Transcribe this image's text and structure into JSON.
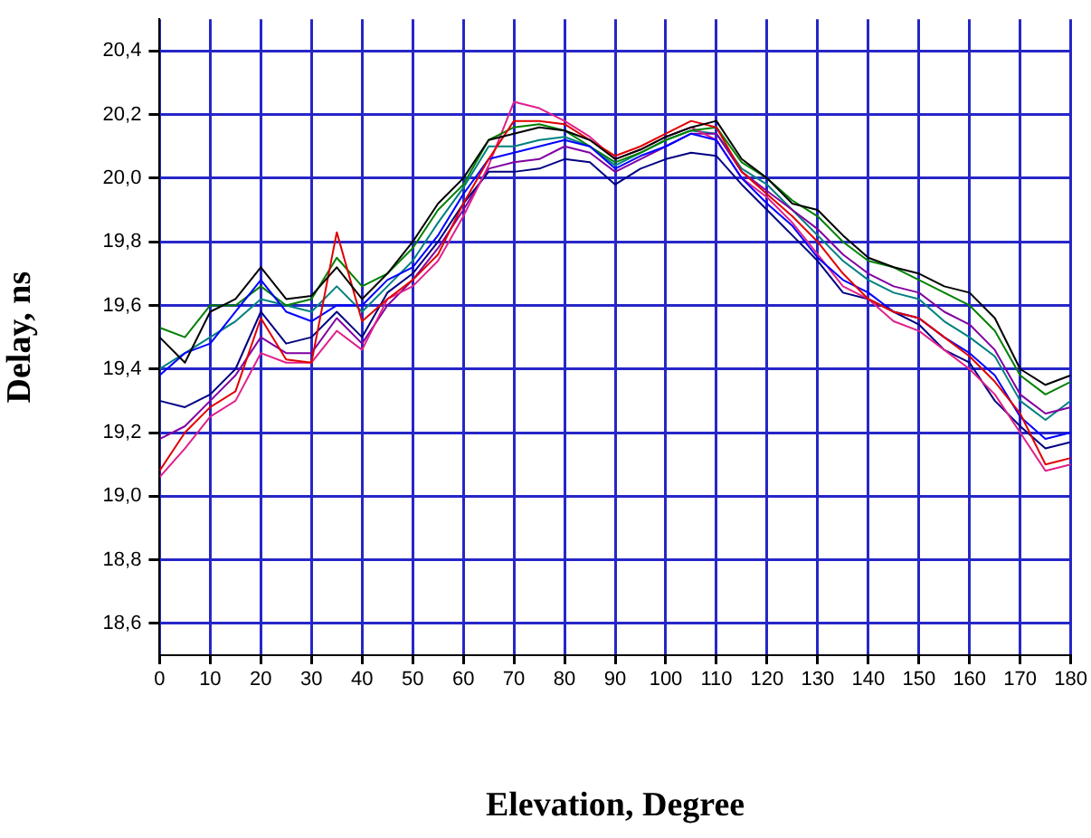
{
  "chart_data": {
    "type": "line",
    "xlabel": "Elevation, Degree",
    "ylabel": "Delay, ns",
    "x": [
      0,
      5,
      10,
      15,
      20,
      25,
      30,
      35,
      40,
      45,
      50,
      55,
      60,
      65,
      70,
      75,
      80,
      85,
      90,
      95,
      100,
      105,
      110,
      115,
      120,
      125,
      130,
      135,
      140,
      145,
      150,
      155,
      160,
      165,
      170,
      175,
      180
    ],
    "xlim": [
      0,
      180
    ],
    "xticks": [
      0,
      10,
      20,
      30,
      40,
      50,
      60,
      70,
      80,
      90,
      100,
      110,
      120,
      130,
      140,
      150,
      160,
      170,
      180
    ],
    "ylim": [
      18.5,
      20.5
    ],
    "yticks": [
      {
        "value": 18.6,
        "label": "18,6"
      },
      {
        "value": 18.8,
        "label": "18,8"
      },
      {
        "value": 19.0,
        "label": "19,0"
      },
      {
        "value": 19.2,
        "label": "19,2"
      },
      {
        "value": 19.4,
        "label": "19,4"
      },
      {
        "value": 19.6,
        "label": "19,6"
      },
      {
        "value": 19.8,
        "label": "19,8"
      },
      {
        "value": 20.0,
        "label": "20,0"
      },
      {
        "value": 20.2,
        "label": "20,2"
      },
      {
        "value": 20.4,
        "label": "20,4"
      }
    ],
    "grid": true,
    "legend": false,
    "marker": "none",
    "line_style": "solid",
    "series": [
      {
        "color": "#000000",
        "values": [
          19.5,
          19.42,
          19.58,
          19.62,
          19.72,
          19.62,
          19.63,
          19.72,
          19.62,
          19.7,
          19.8,
          19.92,
          20.0,
          20.12,
          20.14,
          20.16,
          20.15,
          20.12,
          20.06,
          20.09,
          20.13,
          20.16,
          20.18,
          20.06,
          20.0,
          19.92,
          19.9,
          19.82,
          19.75,
          19.72,
          19.7,
          19.66,
          19.64,
          19.56,
          19.4,
          19.35,
          19.38
        ]
      },
      {
        "color": "#e00000",
        "values": [
          19.08,
          19.2,
          19.28,
          19.33,
          19.56,
          19.43,
          19.42,
          19.83,
          19.55,
          19.62,
          19.68,
          19.76,
          19.92,
          20.06,
          20.18,
          20.18,
          20.17,
          20.12,
          20.07,
          20.1,
          20.14,
          20.18,
          20.16,
          20.02,
          19.95,
          19.88,
          19.8,
          19.7,
          19.62,
          19.58,
          19.56,
          19.5,
          19.44,
          19.36,
          19.26,
          19.1,
          19.12
        ]
      },
      {
        "color": "#0000ff",
        "values": [
          19.38,
          19.45,
          19.48,
          19.58,
          19.68,
          19.58,
          19.55,
          19.6,
          19.6,
          19.68,
          19.72,
          19.82,
          19.95,
          20.06,
          20.08,
          20.1,
          20.12,
          20.1,
          20.03,
          20.07,
          20.1,
          20.14,
          20.12,
          20.0,
          19.92,
          19.85,
          19.75,
          19.68,
          19.64,
          19.58,
          19.56,
          19.5,
          19.45,
          19.38,
          19.25,
          19.18,
          19.2
        ]
      },
      {
        "color": "#008000",
        "values": [
          19.53,
          19.5,
          19.6,
          19.6,
          19.66,
          19.6,
          19.62,
          19.75,
          19.66,
          19.7,
          19.78,
          19.9,
          19.98,
          20.12,
          20.16,
          20.17,
          20.15,
          20.1,
          20.05,
          20.08,
          20.12,
          20.15,
          20.16,
          20.05,
          20.0,
          19.93,
          19.88,
          19.8,
          19.74,
          19.72,
          19.68,
          19.64,
          19.6,
          19.52,
          19.38,
          19.32,
          19.36
        ]
      },
      {
        "color": "#e0208a",
        "values": [
          19.06,
          19.15,
          19.25,
          19.3,
          19.45,
          19.42,
          19.42,
          19.52,
          19.46,
          19.62,
          19.66,
          19.74,
          19.88,
          20.04,
          20.24,
          20.22,
          20.18,
          20.13,
          20.06,
          20.09,
          20.13,
          20.16,
          20.12,
          20.0,
          19.94,
          19.86,
          19.76,
          19.66,
          19.62,
          19.55,
          19.52,
          19.46,
          19.4,
          19.32,
          19.2,
          19.08,
          19.1
        ]
      },
      {
        "color": "#000080",
        "values": [
          19.3,
          19.28,
          19.32,
          19.4,
          19.58,
          19.48,
          19.5,
          19.58,
          19.5,
          19.64,
          19.7,
          19.8,
          19.92,
          20.02,
          20.02,
          20.03,
          20.06,
          20.05,
          19.98,
          20.03,
          20.06,
          20.08,
          20.07,
          19.98,
          19.9,
          19.82,
          19.74,
          19.64,
          19.62,
          19.58,
          19.54,
          19.46,
          19.42,
          19.3,
          19.22,
          19.15,
          19.17
        ]
      },
      {
        "color": "#8000a0",
        "values": [
          19.18,
          19.22,
          19.3,
          19.38,
          19.5,
          19.45,
          19.45,
          19.56,
          19.48,
          19.6,
          19.68,
          19.78,
          19.9,
          20.03,
          20.05,
          20.06,
          20.1,
          20.08,
          20.02,
          20.06,
          20.1,
          20.14,
          20.14,
          20.02,
          19.96,
          19.9,
          19.84,
          19.76,
          19.7,
          19.66,
          19.64,
          19.58,
          19.54,
          19.46,
          19.32,
          19.26,
          19.28
        ]
      },
      {
        "color": "#008080",
        "values": [
          19.4,
          19.45,
          19.5,
          19.55,
          19.62,
          19.6,
          19.58,
          19.66,
          19.58,
          19.66,
          19.74,
          19.86,
          19.97,
          20.1,
          20.1,
          20.12,
          20.13,
          20.1,
          20.04,
          20.08,
          20.12,
          20.15,
          20.14,
          20.03,
          19.98,
          19.9,
          19.82,
          19.74,
          19.68,
          19.64,
          19.62,
          19.55,
          19.5,
          19.44,
          19.3,
          19.24,
          19.3
        ]
      }
    ]
  }
}
